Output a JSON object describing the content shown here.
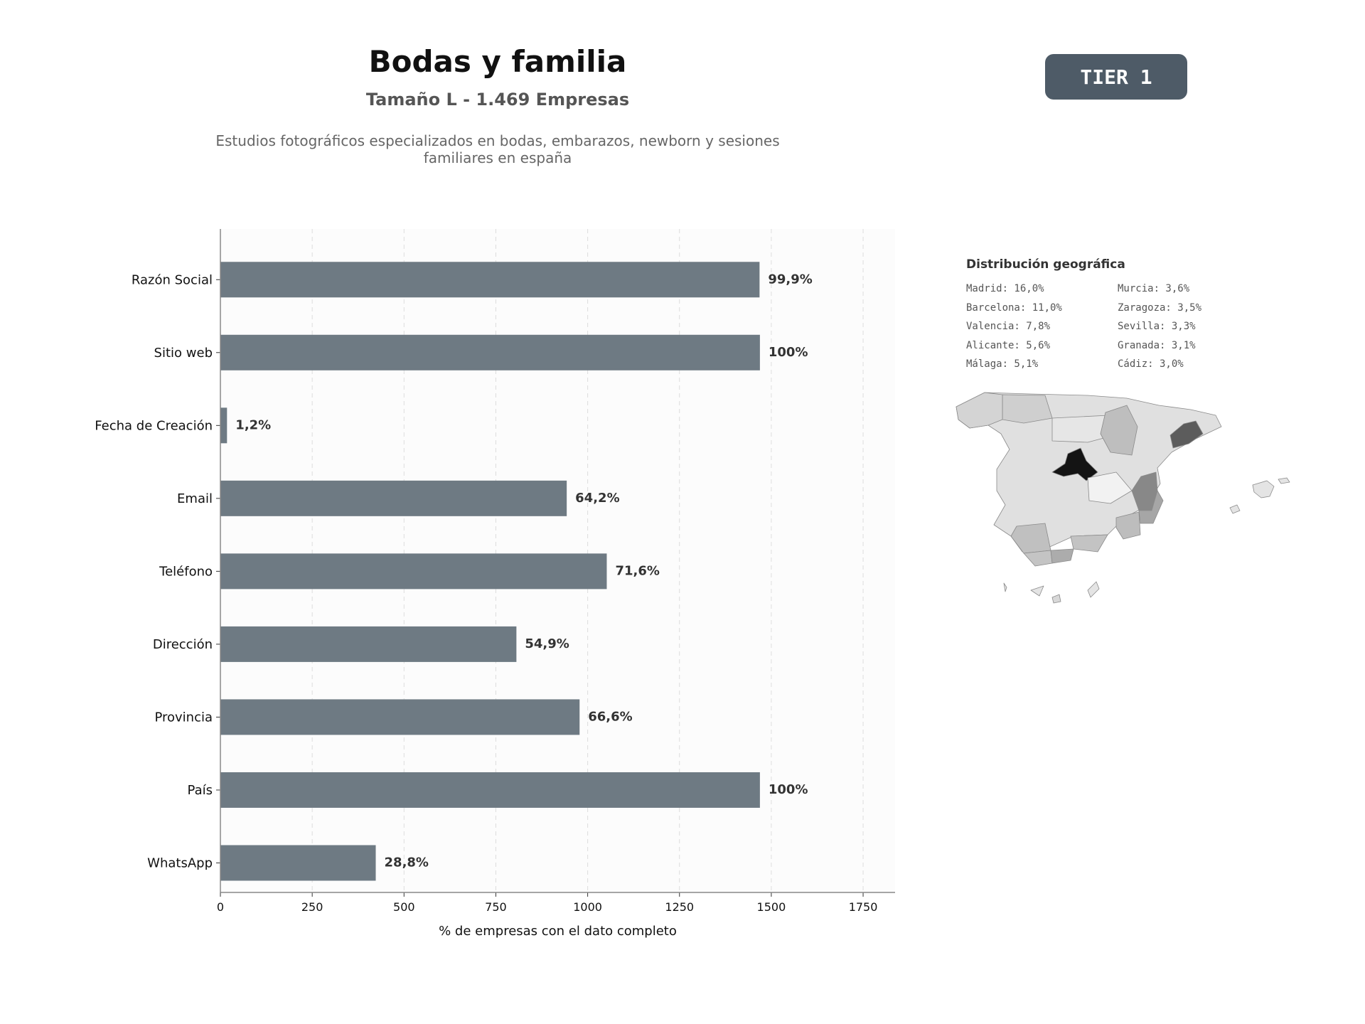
{
  "header": {
    "title": "Bodas y familia",
    "subtitle": "Tamaño L - 1.469 Empresas",
    "description": "Estudios fotográficos especializados en bodas, embarazos, newborn y sesiones familiares en españa",
    "badge": "TIER 1"
  },
  "colors": {
    "bar": "#6e7a83",
    "panel_background": "#fcfcfc",
    "badge_background": "#4e5b67"
  },
  "chart_data": [
    {
      "type": "bar",
      "orientation": "horizontal",
      "title": "",
      "xlabel": "% de empresas con el dato completo",
      "ylabel": "",
      "xlim": [
        0,
        1837
      ],
      "xticks": [
        0,
        250,
        500,
        750,
        1000,
        1250,
        1500,
        1750
      ],
      "grid": "vertical-dashed",
      "categories": [
        "Razón Social",
        "Sitio web",
        "Fecha de Creación",
        "Email",
        "Teléfono",
        "Dirección",
        "Provincia",
        "País",
        "WhatsApp"
      ],
      "values": [
        1468,
        1469,
        18,
        943,
        1052,
        806,
        978,
        1469,
        423
      ],
      "data_labels": [
        "99,9%",
        "100%",
        "1,2%",
        "64,2%",
        "71,6%",
        "54,9%",
        "66,6%",
        "100%",
        "28,8%"
      ]
    },
    {
      "type": "choropleth",
      "title": "Distribución geográfica",
      "regions": [
        {
          "label": "Madrid: 16,0%",
          "name": "Madrid",
          "value": 16.0,
          "color": "#141414"
        },
        {
          "label": "Barcelona: 11,0%",
          "name": "Barcelona",
          "value": 11.0,
          "color": "#5c5c5c"
        },
        {
          "label": "Valencia: 7,8%",
          "name": "Valencia",
          "value": 7.8,
          "color": "#888888"
        },
        {
          "label": "Alicante: 5,6%",
          "name": "Alicante",
          "value": 5.6,
          "color": "#a6a6a6"
        },
        {
          "label": "Málaga: 5,1%",
          "name": "Málaga",
          "value": 5.1,
          "color": "#acacac"
        },
        {
          "label": "Murcia: 3,6%",
          "name": "Murcia",
          "value": 3.6,
          "color": "#bdbdbd"
        },
        {
          "label": "Zaragoza: 3,5%",
          "name": "Zaragoza",
          "value": 3.5,
          "color": "#bebebe"
        },
        {
          "label": "Sevilla: 3,3%",
          "name": "Sevilla",
          "value": 3.3,
          "color": "#c0c0c0"
        },
        {
          "label": "Granada: 3,1%",
          "name": "Granada",
          "value": 3.1,
          "color": "#c3c3c3"
        },
        {
          "label": "Cádiz: 3,0%",
          "name": "Cádiz",
          "value": 3.0,
          "color": "#c4c4c4"
        }
      ]
    }
  ]
}
